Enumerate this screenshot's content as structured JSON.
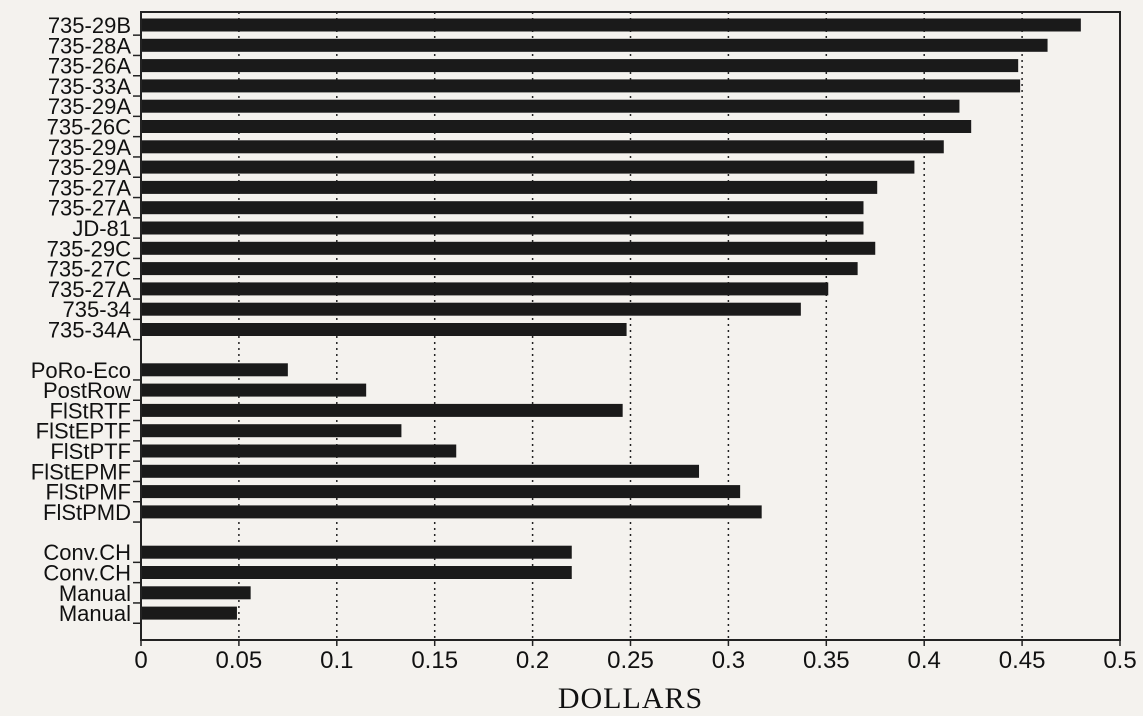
{
  "chart_data": {
    "type": "bar",
    "orientation": "horizontal",
    "xlabel": "DOLLARS",
    "ylabel": "",
    "xlim": [
      0,
      0.5
    ],
    "xticks": [
      "0",
      "0.05",
      "0.1",
      "0.15",
      "0.2",
      "0.25",
      "0.3",
      "0.35",
      "0.4",
      "0.45",
      "0.5"
    ],
    "grid": "vertical dotted",
    "bar_color": "#1a1a1a",
    "groups": [
      {
        "categories": [
          "735-29B",
          "735-28A",
          "735-26A",
          "735-33A",
          "735-29A",
          "735-26C",
          "735-29A",
          "735-29A",
          "735-27A",
          "735-27A",
          "JD-81",
          "735-29C",
          "735-27C",
          "735-27A",
          "735-34",
          "735-34A"
        ],
        "values": [
          0.48,
          0.463,
          0.448,
          0.449,
          0.418,
          0.424,
          0.41,
          0.395,
          0.376,
          0.369,
          0.369,
          0.375,
          0.366,
          0.351,
          0.337,
          0.248
        ]
      },
      {
        "categories": [
          "PoRo-Eco",
          "PostRow",
          "FlStRTF",
          "FlStEPTF",
          "FlStPTF",
          "FlStEPMF",
          "FlStPMF",
          "FlStPMD"
        ],
        "values": [
          0.075,
          0.115,
          0.246,
          0.133,
          0.161,
          0.285,
          0.306,
          0.317
        ]
      },
      {
        "categories": [
          "Conv.CH",
          "Conv.CH",
          "Manual",
          "Manual"
        ],
        "values": [
          0.22,
          0.22,
          0.056,
          0.049
        ]
      }
    ]
  }
}
